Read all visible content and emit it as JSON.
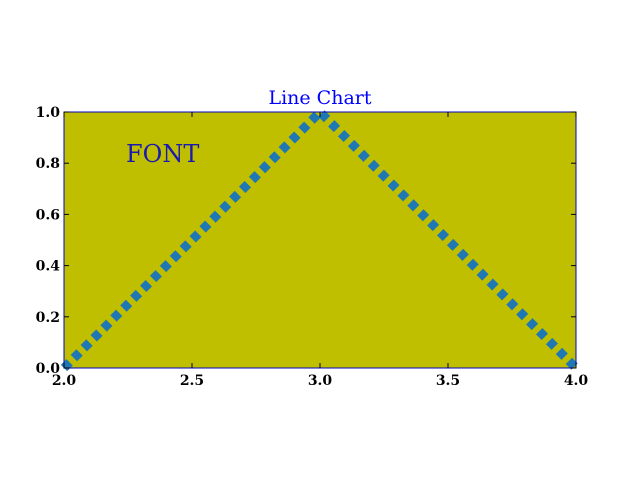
{
  "chart_data": {
    "type": "line",
    "title": "Line Chart",
    "annotation": "FONT",
    "xlabel": "",
    "ylabel": "",
    "xlim": [
      2.0,
      4.0
    ],
    "ylim": [
      0.0,
      1.0
    ],
    "x_ticks": [
      "2.0",
      "2.5",
      "3.0",
      "3.5",
      "4.0"
    ],
    "y_ticks": [
      "0.0",
      "0.2",
      "0.4",
      "0.6",
      "0.8",
      "1.0"
    ],
    "grid": false,
    "series": [
      {
        "x": [
          2.0,
          3.0,
          4.0
        ],
        "y": [
          0.0,
          1.0,
          0.0
        ],
        "line_style": "dotted",
        "color": "#1f77b4"
      }
    ]
  },
  "colors": {
    "plot_background": "#bfbf00",
    "axes_frame": "#0000bb",
    "title": "#0000ff",
    "annotation": "#1a1ab0",
    "line": "#1f77b4"
  }
}
